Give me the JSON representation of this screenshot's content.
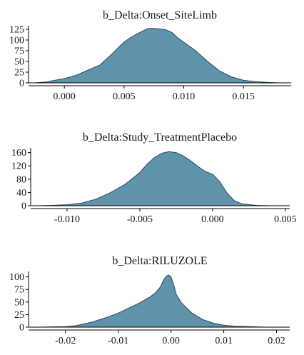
{
  "chart_data": [
    {
      "type": "area",
      "title": "b_Delta:Onset_SiteLimb",
      "xlim": [
        -0.003,
        0.019
      ],
      "ylim": [
        0,
        130
      ],
      "x_ticks": [
        0.0,
        0.005,
        0.01,
        0.015
      ],
      "x_tick_labels": [
        "0.000",
        "0.005",
        "0.010",
        "0.015"
      ],
      "y_ticks": [
        0,
        25,
        50,
        75,
        100,
        125
      ],
      "y_tick_labels": [
        "0",
        "25",
        "50",
        "75",
        "100",
        "125"
      ],
      "series": [
        {
          "x": [
            -0.0025,
            -0.0015,
            -0.001,
            0.0,
            0.001,
            0.002,
            0.003,
            0.004,
            0.0045,
            0.005,
            0.0055,
            0.006,
            0.0065,
            0.007,
            0.0075,
            0.008,
            0.0085,
            0.009,
            0.0095,
            0.01,
            0.011,
            0.012,
            0.013,
            0.014,
            0.015,
            0.016,
            0.017,
            0.018
          ],
          "y": [
            0,
            2,
            5,
            10,
            18,
            30,
            42,
            68,
            82,
            95,
            105,
            113,
            120,
            127,
            127,
            126,
            124,
            118,
            105,
            95,
            75,
            50,
            28,
            14,
            6,
            3,
            1,
            0
          ]
        }
      ]
    },
    {
      "type": "area",
      "title": "b_Delta:Study_TreatmentPlacebo",
      "xlim": [
        -0.0125,
        0.0053
      ],
      "ylim": [
        0,
        170
      ],
      "x_ticks": [
        -0.01,
        -0.005,
        0.0,
        0.005
      ],
      "x_tick_labels": [
        "-0.010",
        "-0.005",
        "0.000",
        "0.005"
      ],
      "y_ticks": [
        0,
        40,
        80,
        120,
        160
      ],
      "y_tick_labels": [
        "0",
        "40",
        "80",
        "120",
        "160"
      ],
      "series": [
        {
          "x": [
            -0.012,
            -0.011,
            -0.01,
            -0.009,
            -0.008,
            -0.007,
            -0.006,
            -0.005,
            -0.0045,
            -0.004,
            -0.0035,
            -0.003,
            -0.0025,
            -0.002,
            -0.0015,
            -0.001,
            -0.0005,
            0.0,
            0.0005,
            0.001,
            0.0015,
            0.002,
            0.003,
            0.004
          ],
          "y": [
            0,
            1,
            3,
            8,
            20,
            40,
            65,
            100,
            125,
            145,
            158,
            163,
            160,
            150,
            135,
            118,
            103,
            95,
            72,
            38,
            15,
            6,
            1,
            0
          ]
        }
      ]
    },
    {
      "type": "area",
      "title": "b_Delta:RILUZOLE",
      "xlim": [
        -0.027,
        0.0225
      ],
      "ylim": [
        0,
        108
      ],
      "x_ticks": [
        -0.02,
        -0.01,
        0.0,
        0.01,
        0.02
      ],
      "x_tick_labels": [
        "-0.02",
        "-0.01",
        "0.00",
        "0.01",
        "0.02"
      ],
      "y_ticks": [
        0,
        25,
        50,
        75,
        100
      ],
      "y_tick_labels": [
        "0",
        "25",
        "50",
        "75",
        "100"
      ],
      "series": [
        {
          "x": [
            -0.025,
            -0.02,
            -0.018,
            -0.015,
            -0.012,
            -0.01,
            -0.008,
            -0.006,
            -0.004,
            -0.003,
            -0.002,
            -0.0015,
            -0.001,
            -0.0005,
            0.0,
            0.0005,
            0.001,
            0.002,
            0.004,
            0.006,
            0.008,
            0.01,
            0.012,
            0.015,
            0.018
          ],
          "y": [
            0,
            1,
            3,
            10,
            20,
            28,
            38,
            48,
            60,
            68,
            80,
            92,
            100,
            104,
            100,
            85,
            65,
            48,
            28,
            15,
            8,
            4,
            2,
            1,
            0
          ]
        }
      ]
    }
  ]
}
